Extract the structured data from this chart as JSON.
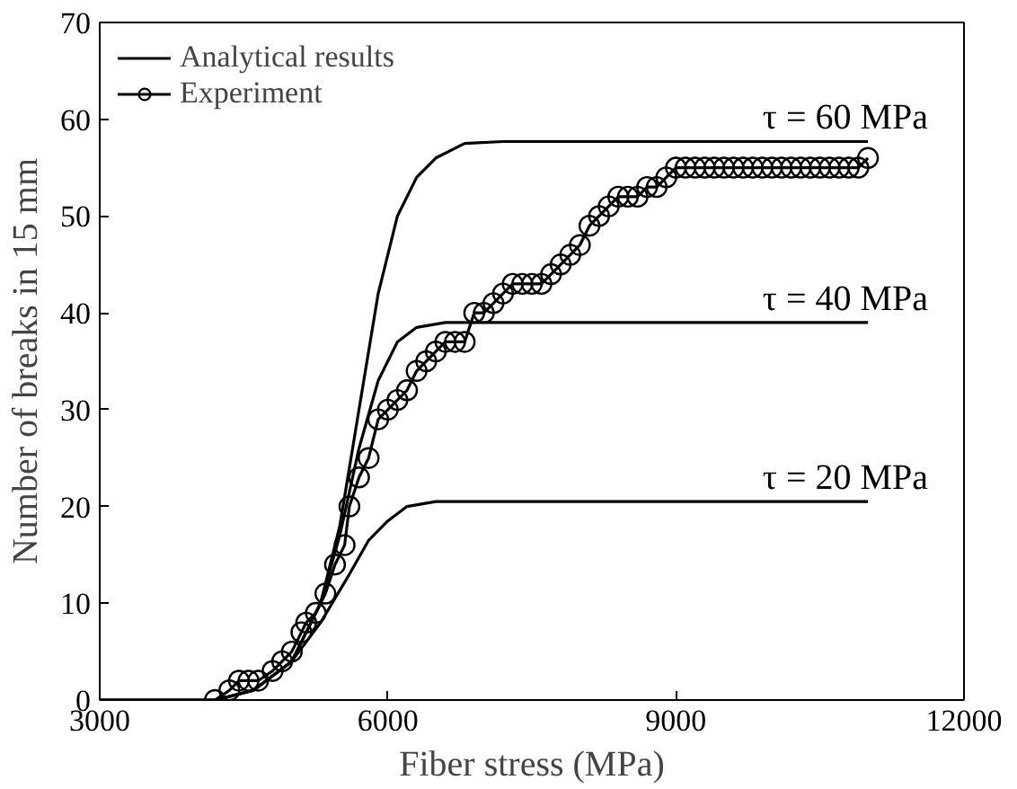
{
  "chart_data": {
    "type": "line",
    "xlabel": "Fiber stress (MPa)",
    "ylabel": "Number of breaks in 15 mm",
    "xlim": [
      3000,
      12000
    ],
    "xticks": [
      3000,
      6000,
      9000,
      12000
    ],
    "ylim": [
      0,
      70
    ],
    "yticks": [
      0,
      10,
      20,
      30,
      40,
      50,
      60,
      70
    ],
    "grid": false,
    "legend": "top left",
    "line_style": "solid",
    "series": [
      {
        "name": "Analytical results",
        "color": "#000000",
        "marker": "none",
        "x": [
          3000,
          4200,
          4600,
          5000,
          5300,
          5500,
          5700,
          5900,
          6100,
          6300,
          6500,
          6800,
          7200,
          11000
        ],
        "values": [
          0,
          0,
          1,
          4,
          10,
          18,
          30,
          42,
          50,
          54,
          56,
          57.5,
          57.7,
          57.7
        ]
      },
      {
        "color": "#000000",
        "marker": "none",
        "x": [
          3000,
          4200,
          4600,
          5000,
          5300,
          5500,
          5700,
          5900,
          6100,
          6300,
          6600,
          11000
        ],
        "values": [
          0,
          0,
          1,
          4,
          10,
          17,
          26,
          33,
          37,
          38.5,
          39,
          39
        ]
      },
      {
        "color": "#000000",
        "marker": "none",
        "x": [
          3000,
          4200,
          4600,
          5000,
          5300,
          5600,
          5800,
          6000,
          6200,
          6500,
          11000
        ],
        "values": [
          0,
          0,
          1,
          4,
          8,
          13,
          16.5,
          18.5,
          20,
          20.5,
          20.5
        ]
      },
      {
        "name": "Experiment",
        "color": "#000000",
        "marker": "circle",
        "x": [
          4200,
          4350,
          4450,
          4550,
          4650,
          4800,
          4900,
          5000,
          5100,
          5150,
          5250,
          5350,
          5450,
          5550,
          5600,
          5700,
          5800,
          5900,
          6000,
          6100,
          6200,
          6300,
          6400,
          6500,
          6600,
          6700,
          6800,
          6900,
          7000,
          7100,
          7200,
          7300,
          7400,
          7500,
          7600,
          7700,
          7800,
          7900,
          8000,
          8100,
          8200,
          8300,
          8400,
          8500,
          8600,
          8700,
          8800,
          8900,
          9000,
          9100,
          9200,
          9300,
          9400,
          9500,
          9600,
          9700,
          9800,
          9900,
          10000,
          10100,
          10200,
          10300,
          10400,
          10500,
          10600,
          10700,
          10800,
          10900,
          11000
        ],
        "values": [
          0,
          1,
          2,
          2,
          2,
          3,
          4,
          5,
          7,
          8,
          9,
          11,
          14,
          16,
          20,
          23,
          25,
          29,
          30,
          31,
          32,
          34,
          35,
          36,
          37,
          37,
          37,
          40,
          40,
          41,
          42,
          43,
          43,
          43,
          43,
          44,
          45,
          46,
          47,
          49,
          50,
          51,
          52,
          52,
          52,
          53,
          53,
          54,
          55,
          55,
          55,
          55,
          55,
          55,
          55,
          55,
          55,
          55,
          55,
          55,
          55,
          55,
          55,
          55,
          55,
          55,
          55,
          55,
          56
        ]
      }
    ],
    "annotations": [
      {
        "text": "τ = 60 MPa",
        "y": 57.7
      },
      {
        "text": "τ = 40 MPa",
        "y": 39
      },
      {
        "text": "τ = 20 MPa",
        "y": 20.5
      }
    ]
  }
}
